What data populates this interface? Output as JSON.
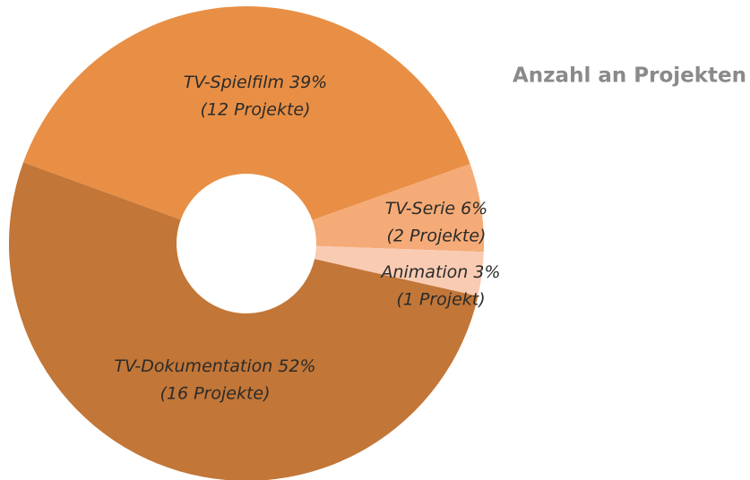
{
  "chart_data": {
    "type": "pie",
    "title": "Anzahl an Projekten",
    "categories": [
      "TV-Spielfilm",
      "TV-Serie",
      "Animation",
      "TV-Dokumentation"
    ],
    "values": [
      39,
      6,
      3,
      52
    ],
    "value_labels": [
      "39%",
      "6%",
      "3%",
      "52%"
    ],
    "project_labels": [
      "(12 Projekte)",
      "(2 Projekte)",
      "(1 Projekt)",
      "(16 Projekte)"
    ],
    "colors": [
      "#e88f45",
      "#f5ab77",
      "#f9cbb3",
      "#c27637"
    ]
  }
}
